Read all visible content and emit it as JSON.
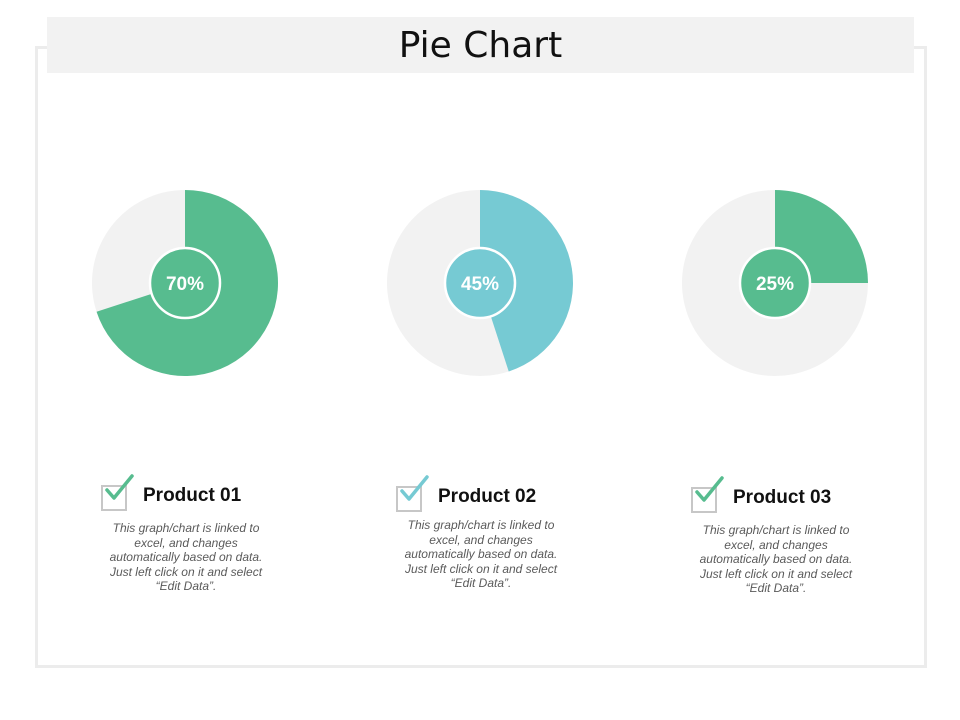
{
  "title": "Pie Chart",
  "colors": {
    "green": "#57bc8f",
    "blue": "#76cad3",
    "track": "#f2f2f2"
  },
  "chart_data": [
    {
      "type": "pie",
      "values": [
        70,
        30
      ],
      "label": "70%",
      "color": "#57bc8f"
    },
    {
      "type": "pie",
      "values": [
        45,
        55
      ],
      "label": "45%",
      "color": "#76cad3"
    },
    {
      "type": "pie",
      "values": [
        25,
        75
      ],
      "label": "25%",
      "color": "#57bc8f"
    }
  ],
  "products": [
    {
      "name": "Product 01",
      "description": "This graph/chart is linked to excel, and changes automatically based on data. Just left click on it and select “Edit Data”."
    },
    {
      "name": "Product 02",
      "description": "This graph/chart is linked to excel, and changes automatically based on data. Just left click on it and select “Edit Data”."
    },
    {
      "name": "Product 03",
      "description": "This graph/chart is linked to excel, and changes automatically based on data. Just left click on it and select “Edit Data”."
    }
  ]
}
